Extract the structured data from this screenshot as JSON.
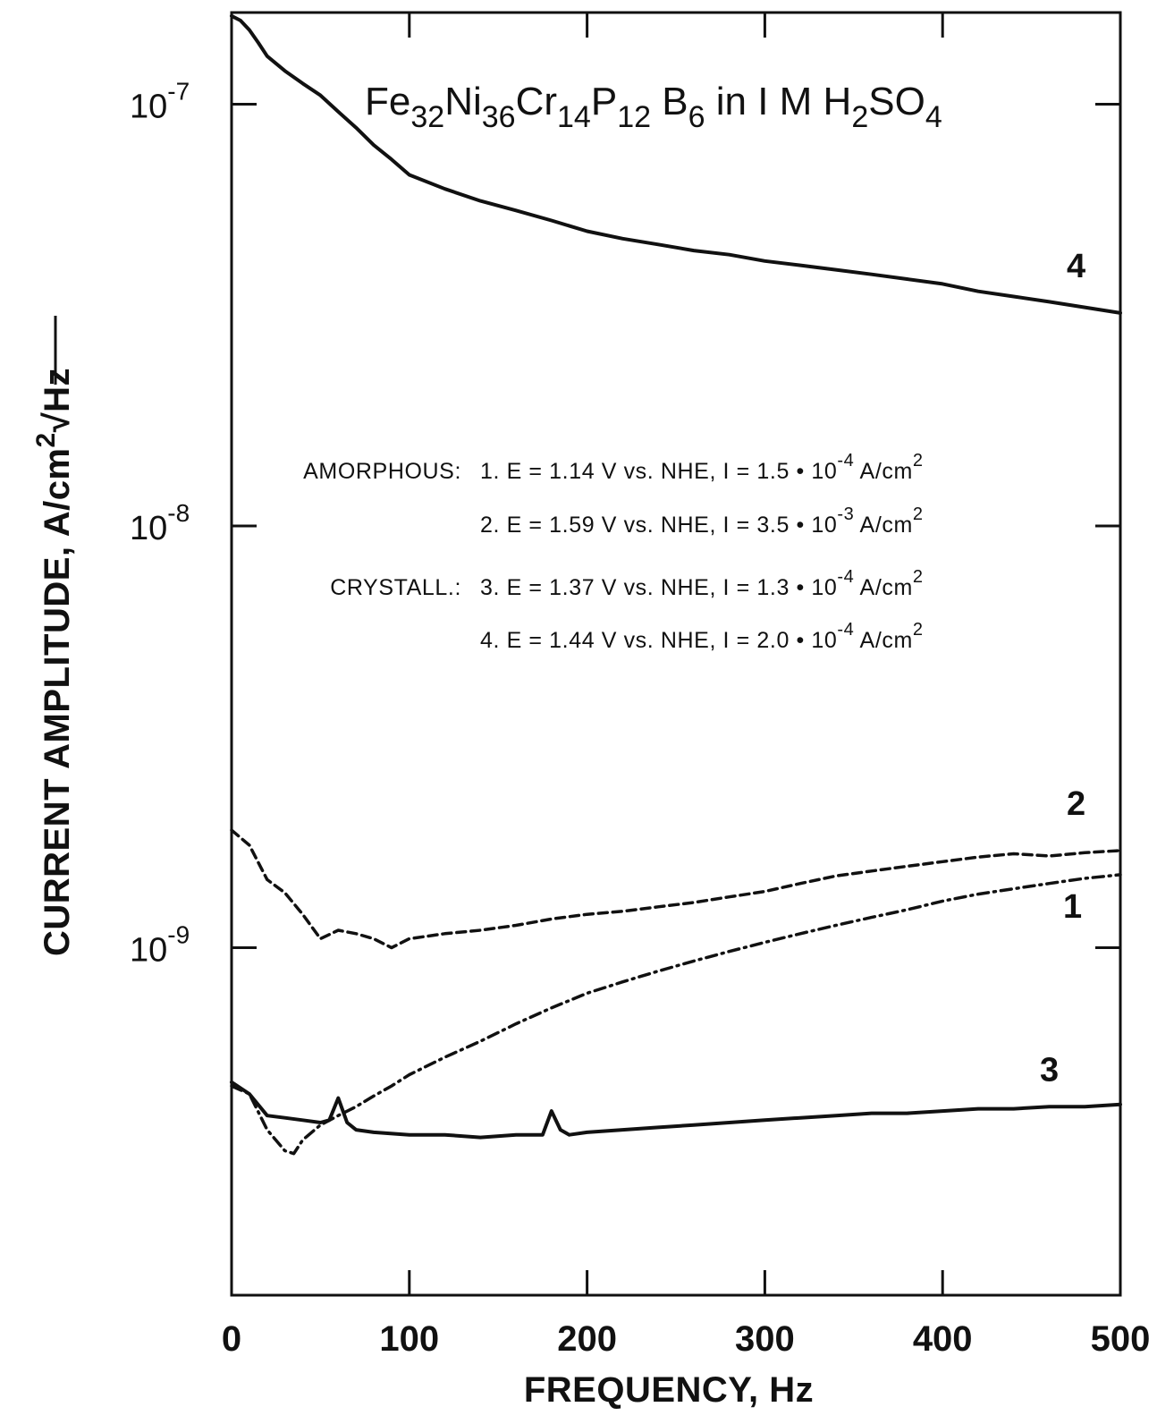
{
  "chart_data": {
    "type": "line",
    "title": "Fe32Ni36Cr14P12 B6 in I M H2SO4",
    "title_parts": {
      "t1": "Fe",
      "s1": "32",
      "t2": "Ni",
      "s2": "36",
      "t3": "Cr",
      "s3": "14",
      "t4": "P",
      "s4": "12",
      "t5": " B",
      "s5": "6",
      "t6": " in I M H",
      "s6": "2",
      "t7": "SO",
      "s7": "4"
    },
    "xlabel": "FREQUENCY, Hz",
    "ylabel_parts": {
      "main": "CURRENT AMPLITUDE, A/cm",
      "sup": "2",
      "root": "√",
      "unit": "Hz"
    },
    "xlim": [
      0,
      500
    ],
    "ylim": [
      1.5e-10,
      1.65e-07
    ],
    "y_scale": "log",
    "grid": false,
    "x_tick_labels": [
      "0",
      "100",
      "200",
      "300",
      "400",
      "500"
    ],
    "x_ticks": [
      0,
      100,
      200,
      300,
      400,
      500
    ],
    "y_ticks": [
      1e-07,
      1e-08,
      1e-09
    ],
    "y_tick_labels": [
      {
        "base": "10",
        "exp": "-7"
      },
      {
        "base": "10",
        "exp": "-8"
      },
      {
        "base": "10",
        "exp": "-9"
      }
    ],
    "annotations": [
      {
        "prefix": "AMORPHOUS:",
        "text": "1.  E = 1.14 V vs. NHE,  I  =  1.5 • 10",
        "exp": "-4",
        "unit": " A/cm",
        "unit_exp": "2"
      },
      {
        "prefix": "",
        "text": "2.  E = 1.59 V vs. NHE,  I  =  3.5 • 10",
        "exp": "-3",
        "unit": " A/cm",
        "unit_exp": "2"
      },
      {
        "prefix": "CRYSTALL.:",
        "text": "3.  E = 1.37 V vs. NHE,  I  =  1.3 • 10",
        "exp": "-4",
        "unit": " A/cm",
        "unit_exp": "2"
      },
      {
        "prefix": "",
        "text": "4.  E = 1.44 V vs. NHE,  I  = 2.0 • 10",
        "exp": "-4",
        "unit": " A/cm",
        "unit_exp": "2"
      }
    ],
    "series": [
      {
        "name": "1",
        "style": "dashdot",
        "x": [
          0,
          10,
          20,
          30,
          35,
          40,
          50,
          60,
          70,
          80,
          90,
          100,
          120,
          140,
          160,
          180,
          200,
          220,
          240,
          260,
          280,
          300,
          320,
          340,
          360,
          380,
          400,
          420,
          440,
          460,
          480,
          500
        ],
        "y": [
          4.7e-10,
          4.5e-10,
          3.7e-10,
          3.3e-10,
          3.25e-10,
          3.5e-10,
          3.8e-10,
          4e-10,
          4.2e-10,
          4.45e-10,
          4.7e-10,
          5e-10,
          5.5e-10,
          6e-10,
          6.6e-10,
          7.2e-10,
          7.8e-10,
          8.3e-10,
          8.8e-10,
          9.3e-10,
          9.8e-10,
          1.03e-09,
          1.08e-09,
          1.13e-09,
          1.18e-09,
          1.23e-09,
          1.29e-09,
          1.34e-09,
          1.38e-09,
          1.42e-09,
          1.46e-09,
          1.49e-09
        ]
      },
      {
        "name": "2",
        "style": "dashed",
        "x": [
          0,
          10,
          20,
          30,
          40,
          50,
          60,
          70,
          80,
          90,
          100,
          120,
          140,
          160,
          180,
          200,
          220,
          240,
          260,
          280,
          300,
          320,
          340,
          360,
          380,
          400,
          420,
          440,
          460,
          480,
          500
        ],
        "y": [
          1.9e-09,
          1.75e-09,
          1.45e-09,
          1.35e-09,
          1.2e-09,
          1.05e-09,
          1.1e-09,
          1.08e-09,
          1.05e-09,
          1e-09,
          1.05e-09,
          1.08e-09,
          1.1e-09,
          1.13e-09,
          1.17e-09,
          1.2e-09,
          1.22e-09,
          1.25e-09,
          1.28e-09,
          1.32e-09,
          1.36e-09,
          1.42e-09,
          1.48e-09,
          1.52e-09,
          1.56e-09,
          1.6e-09,
          1.64e-09,
          1.67e-09,
          1.65e-09,
          1.68e-09,
          1.7e-09
        ]
      },
      {
        "name": "3",
        "style": "solid",
        "x": [
          0,
          10,
          20,
          30,
          40,
          50,
          55,
          60,
          65,
          70,
          80,
          100,
          120,
          140,
          160,
          175,
          180,
          185,
          190,
          200,
          220,
          240,
          260,
          280,
          300,
          320,
          340,
          360,
          380,
          400,
          420,
          440,
          460,
          480,
          500
        ],
        "y": [
          4.8e-10,
          4.5e-10,
          4e-10,
          3.95e-10,
          3.9e-10,
          3.85e-10,
          3.9e-10,
          4.4e-10,
          3.85e-10,
          3.7e-10,
          3.65e-10,
          3.6e-10,
          3.6e-10,
          3.55e-10,
          3.6e-10,
          3.6e-10,
          4.1e-10,
          3.7e-10,
          3.6e-10,
          3.65e-10,
          3.7e-10,
          3.75e-10,
          3.8e-10,
          3.85e-10,
          3.9e-10,
          3.95e-10,
          4e-10,
          4.05e-10,
          4.05e-10,
          4.1e-10,
          4.15e-10,
          4.15e-10,
          4.2e-10,
          4.2e-10,
          4.25e-10
        ]
      },
      {
        "name": "4",
        "style": "solid",
        "x": [
          0,
          5,
          10,
          15,
          20,
          30,
          40,
          50,
          60,
          70,
          80,
          90,
          100,
          120,
          140,
          160,
          180,
          200,
          220,
          240,
          260,
          280,
          300,
          320,
          340,
          360,
          380,
          400,
          420,
          440,
          460,
          480,
          500
        ],
        "y": [
          1.62e-07,
          1.58e-07,
          1.5e-07,
          1.4e-07,
          1.3e-07,
          1.2e-07,
          1.12e-07,
          1.05e-07,
          9.6e-08,
          8.8e-08,
          8e-08,
          7.4e-08,
          6.8e-08,
          6.3e-08,
          5.9e-08,
          5.6e-08,
          5.3e-08,
          5e-08,
          4.8e-08,
          4.65e-08,
          4.5e-08,
          4.4e-08,
          4.25e-08,
          4.15e-08,
          4.05e-08,
          3.95e-08,
          3.85e-08,
          3.75e-08,
          3.6e-08,
          3.5e-08,
          3.4e-08,
          3.3e-08,
          3.2e-08
        ]
      }
    ]
  }
}
